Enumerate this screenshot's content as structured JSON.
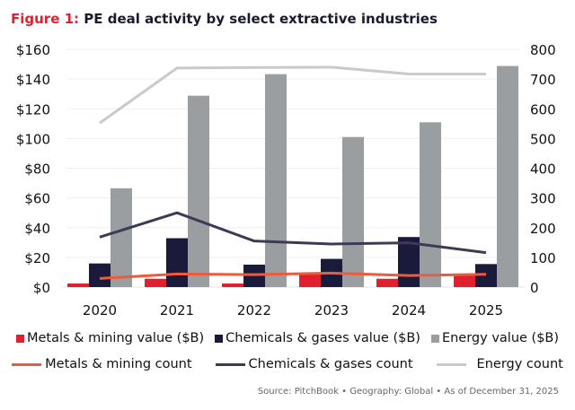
{
  "title": {
    "prefix": "Figure 1:",
    "text": "PE deal activity by select extractive industries"
  },
  "chart_data": {
    "type": "bar",
    "categories": [
      "2020",
      "2021",
      "2022",
      "2023",
      "2024",
      "2025"
    ],
    "left_axis": {
      "ylim": [
        0,
        160
      ],
      "ticks": [
        "$0",
        "$20",
        "$40",
        "$60",
        "$80",
        "$100",
        "$120",
        "$140",
        "$160"
      ]
    },
    "right_axis": {
      "ylim": [
        0,
        800
      ],
      "ticks": [
        "0",
        "100",
        "200",
        "300",
        "400",
        "500",
        "600",
        "700",
        "800"
      ]
    },
    "grid": true,
    "bar_series": [
      {
        "name": "Metals & mining value ($B)",
        "color": "#e0202e",
        "values": [
          2.4,
          5.6,
          2.4,
          8.7,
          5.6,
          8.0
        ]
      },
      {
        "name": "Chemicals & gases value ($B)",
        "color": "#1a1b3a",
        "values": [
          15.9,
          32.9,
          15.1,
          19.0,
          33.7,
          15.5
        ]
      },
      {
        "name": "Energy value ($B)",
        "color": "#9b9ea1",
        "values": [
          66.5,
          128.8,
          143.3,
          101.0,
          110.9,
          148.8
        ]
      }
    ],
    "line_series": [
      {
        "name": "Metals & mining count",
        "color": "#ee5a3c",
        "values": [
          29,
          44,
          42,
          47,
          39,
          43
        ]
      },
      {
        "name": "Chemicals & gases count",
        "color": "#3e3a55",
        "values": [
          168,
          250,
          155,
          145,
          149,
          116
        ]
      },
      {
        "name": "Energy count",
        "color": "#c8cacc",
        "values": [
          552,
          737,
          739,
          740,
          717,
          717
        ]
      }
    ],
    "legend_placement": "bottom"
  },
  "source": "Source: PitchBook  •  Geography: Global  •  As of December 31, 2025"
}
